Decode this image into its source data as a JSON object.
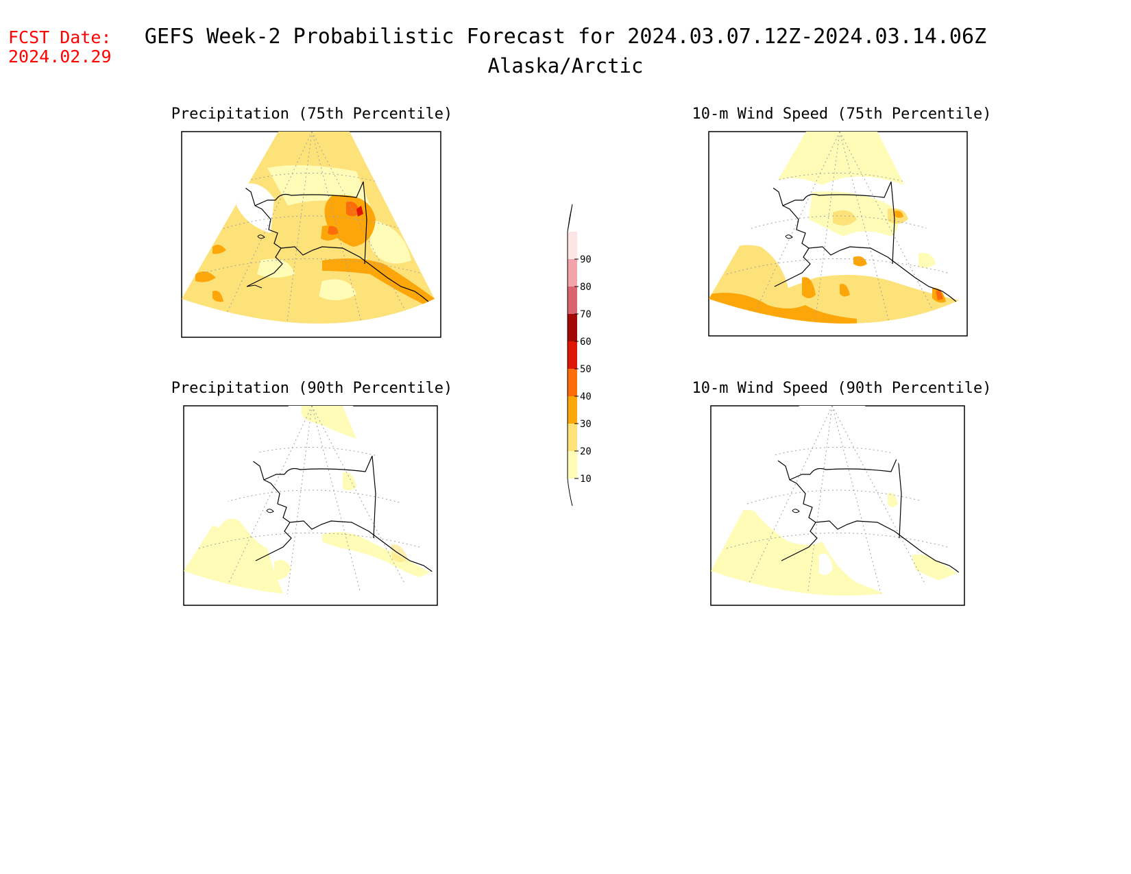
{
  "fcst": {
    "label": "FCST Date:",
    "date": "2024.02.29",
    "color": "#ff0000"
  },
  "title": "GEFS Week-2 Probabilistic Forecast for 2024.03.07.12Z-2024.03.14.06Z",
  "subtitle": "Alaska/Arctic",
  "panels": [
    {
      "id": "precip-75",
      "title": "Precipitation (75th Percentile)",
      "icon": "alaska-map"
    },
    {
      "id": "wind-75",
      "title": "10-m Wind Speed (75th Percentile)",
      "icon": "alaska-map"
    },
    {
      "id": "precip-90",
      "title": "Precipitation (90th Percentile)",
      "icon": "alaska-map"
    },
    {
      "id": "wind-90",
      "title": "10-m Wind Speed (90th Percentile)",
      "icon": "alaska-map"
    }
  ],
  "colorbar": {
    "labels": [
      "10",
      "20",
      "30",
      "40",
      "50",
      "60",
      "70",
      "80",
      "90"
    ],
    "colors": [
      "#fffcb8",
      "#fde27a",
      "#fca60a",
      "#fc6d0a",
      "#df1606",
      "#a20705",
      "#d9646e",
      "#f2a4ab",
      "#fde4e5"
    ]
  },
  "colors": {
    "p10": "#fffcb8",
    "p20": "#fde27a",
    "p30": "#fca60a",
    "p40": "#fc6d0a",
    "p50": "#df1606",
    "coast": "#000000",
    "grid": "#a0a0a0"
  }
}
